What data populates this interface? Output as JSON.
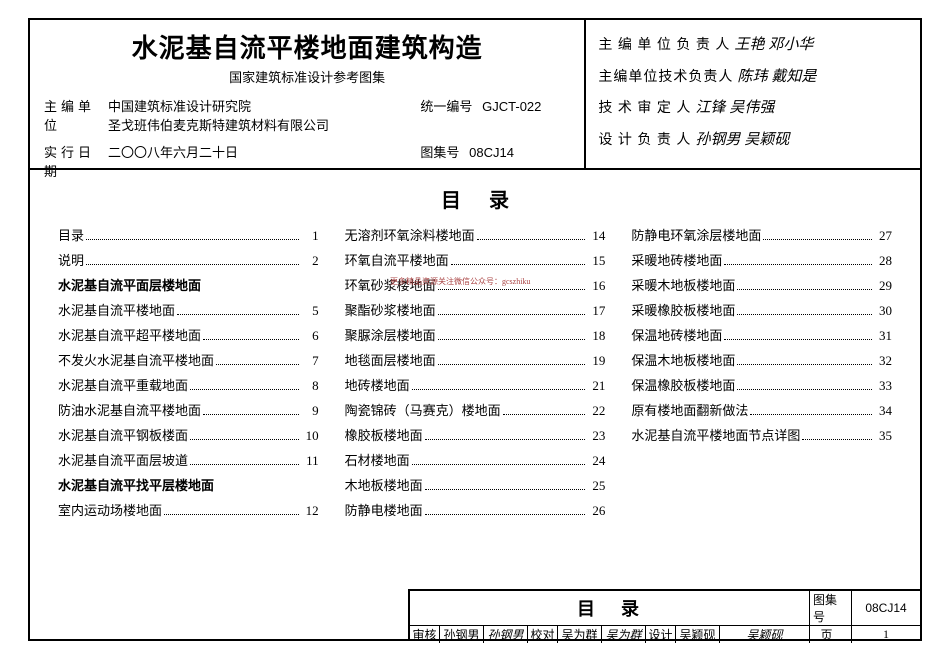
{
  "header": {
    "title": "水泥基自流平楼地面建筑构造",
    "subtitle": "国家建筑标准设计参考图集",
    "org_label": "主编单位",
    "org1": "中国建筑标准设计研究院",
    "org2": "圣戈班伟伯麦克斯特建筑材料有限公司",
    "codenum_label": "统一编号",
    "codenum": "GJCT-022",
    "date_label": "实行日期",
    "date": "二〇〇八年六月二十日",
    "setnum_label": "图集号",
    "setnum": "08CJ14"
  },
  "signatures": {
    "r1_label": "主 编 单 位 负 责 人",
    "r1_v1": "王艳",
    "r1_v2": "邓小华",
    "r2_label": "主编单位技术负责人",
    "r2_v1": "陈玮",
    "r2_v2": "戴知是",
    "r3_label": "技 术 审 定 人",
    "r3_v1": "江锋",
    "r3_v2": "吴伟强",
    "r4_label": "设 计 负 责 人",
    "r4_v1": "孙钢男",
    "r4_v2": "吴颖砚"
  },
  "toc": {
    "title": "目录",
    "col1": [
      {
        "t": "目录",
        "p": "1",
        "b": false
      },
      {
        "t": "说明",
        "p": "2",
        "b": false
      },
      {
        "t": "水泥基自流平面层楼地面",
        "p": "",
        "b": true
      },
      {
        "t": "水泥基自流平楼地面",
        "p": "5",
        "b": false
      },
      {
        "t": "水泥基自流平超平楼地面",
        "p": "6",
        "b": false
      },
      {
        "t": "不发火水泥基自流平楼地面",
        "p": "7",
        "b": false
      },
      {
        "t": "水泥基自流平重载地面",
        "p": "8",
        "b": false
      },
      {
        "t": "防油水泥基自流平楼地面",
        "p": "9",
        "b": false
      },
      {
        "t": "水泥基自流平钢板楼面",
        "p": "10",
        "b": false
      },
      {
        "t": "水泥基自流平面层坡道",
        "p": "11",
        "b": false
      },
      {
        "t": "水泥基自流平找平层楼地面",
        "p": "",
        "b": true
      },
      {
        "t": "室内运动场楼地面",
        "p": "12",
        "b": false
      }
    ],
    "col2": [
      {
        "t": "无溶剂环氧涂料楼地面",
        "p": "14",
        "b": false
      },
      {
        "t": "环氧自流平楼地面",
        "p": "15",
        "b": false
      },
      {
        "t": "环氧砂浆楼地面",
        "p": "16",
        "b": false
      },
      {
        "t": "聚酯砂浆楼地面",
        "p": "17",
        "b": false
      },
      {
        "t": "聚脲涂层楼地面",
        "p": "18",
        "b": false
      },
      {
        "t": "地毯面层楼地面",
        "p": "19",
        "b": false
      },
      {
        "t": "地砖楼地面",
        "p": "21",
        "b": false
      },
      {
        "t": "陶瓷锦砖（马赛克）楼地面",
        "p": "22",
        "b": false
      },
      {
        "t": "橡胶板楼地面",
        "p": "23",
        "b": false
      },
      {
        "t": "石材楼地面",
        "p": "24",
        "b": false
      },
      {
        "t": "木地板楼地面",
        "p": "25",
        "b": false
      },
      {
        "t": "防静电楼地面",
        "p": "26",
        "b": false
      }
    ],
    "col3": [
      {
        "t": "防静电环氧涂层楼地面",
        "p": "27",
        "b": false
      },
      {
        "t": "采暖地砖楼地面",
        "p": "28",
        "b": false
      },
      {
        "t": "采暖木地板楼地面",
        "p": "29",
        "b": false
      },
      {
        "t": "采暖橡胶板楼地面",
        "p": "30",
        "b": false
      },
      {
        "t": "保温地砖楼地面",
        "p": "31",
        "b": false
      },
      {
        "t": "保温木地板楼地面",
        "p": "32",
        "b": false
      },
      {
        "t": "保温橡胶板楼地面",
        "p": "33",
        "b": false
      },
      {
        "t": "原有楼地面翻新做法",
        "p": "34",
        "b": false
      },
      {
        "t": "水泥基自流平楼地面节点详图",
        "p": "35",
        "b": false
      }
    ]
  },
  "footer": {
    "title": "目录",
    "set_label": "图集号",
    "set_val": "08CJ14",
    "page_label": "页",
    "page_val": "1",
    "checks": [
      {
        "l": "审核",
        "v": "孙钢男"
      },
      {
        "l": "",
        "v": "孙钢男"
      },
      {
        "l": "校对",
        "v": "吴为群"
      },
      {
        "l": "",
        "v": "吴为群"
      },
      {
        "l": "设计",
        "v": "吴颖砚"
      },
      {
        "l": "",
        "v": "吴颖砚"
      }
    ]
  },
  "watermark": "更多精品资源关注微信公众号：gcszhiku"
}
